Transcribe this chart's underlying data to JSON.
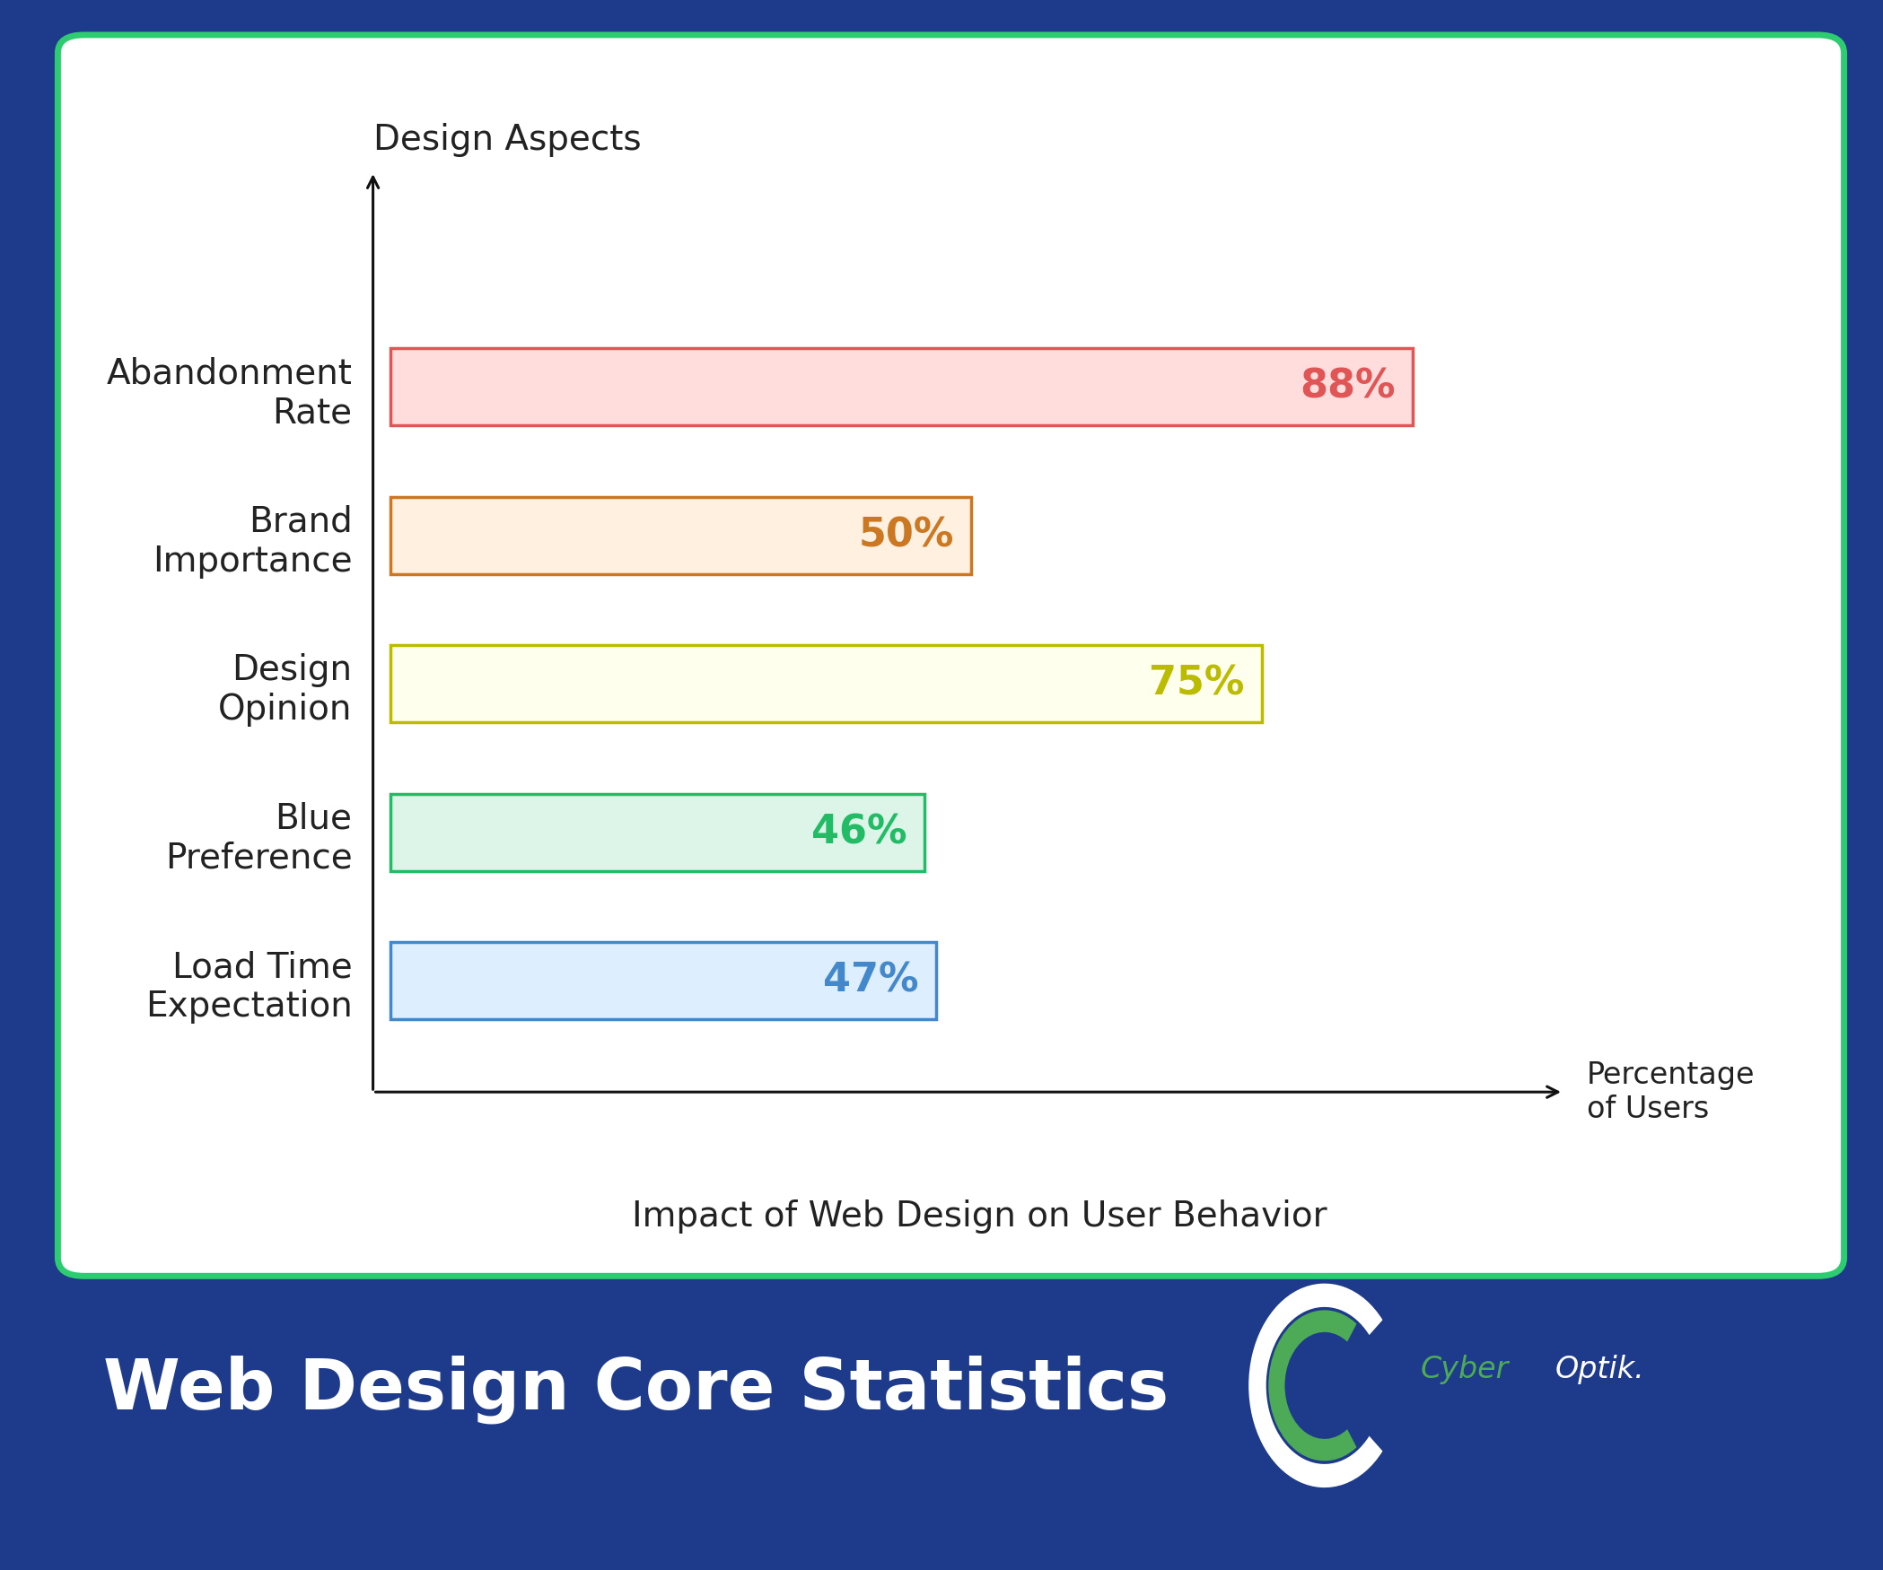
{
  "background_color": "#1e3a8a",
  "card_bg": "#ffffff",
  "card_border_color": "#2ecc71",
  "title": "Web Design Core Statistics",
  "title_color": "#ffffff",
  "title_fontsize": 56,
  "categories": [
    "Abandonment\nRate",
    "Brand\nImportance",
    "Design\nOpinion",
    "Blue\nPreference",
    "Load Time\nExpectation"
  ],
  "values": [
    88,
    50,
    75,
    46,
    47
  ],
  "bar_face_colors": [
    "#ffdddd",
    "#fff0e0",
    "#ffffee",
    "#ddf5e8",
    "#ddeeff"
  ],
  "bar_edge_colors": [
    "#e05555",
    "#cc7722",
    "#bbbb00",
    "#22bb66",
    "#4488cc"
  ],
  "label_colors": [
    "#e05555",
    "#cc7722",
    "#bbbb00",
    "#22bb66",
    "#4488cc"
  ],
  "ylabel": "Design Aspects",
  "xlabel": "Impact of Web Design on User Behavior",
  "xaxis_label": "Percentage\nof Users",
  "axis_color": "#111111",
  "value_fontsize": 32,
  "tick_fontsize": 28,
  "label_fontsize": 28,
  "ylabel_fontsize": 28,
  "logo_cyber_color": "#4daa57",
  "logo_white": "#ffffff"
}
